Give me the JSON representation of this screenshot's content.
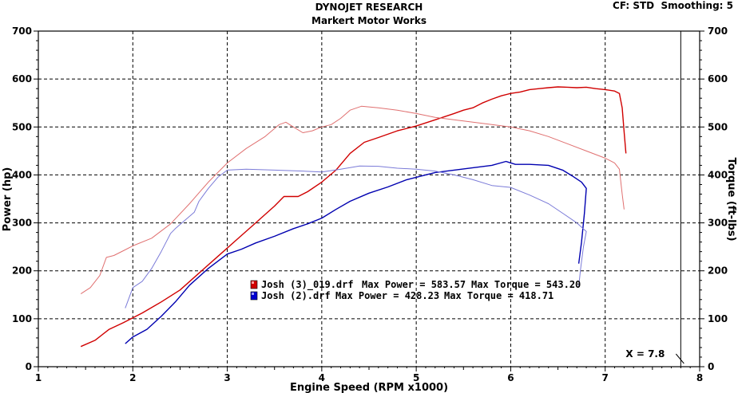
{
  "header": {
    "title": "DYNOJET RESEARCH",
    "subtitle": "Markert Motor Works",
    "cf_label": "CF: STD",
    "smoothing_label": "Smoothing: 5"
  },
  "legend": [
    {
      "file": "Josh (3)_019.drf",
      "power_text": "Max Power = 583.57",
      "torque_text": "Max Torque = 543.20",
      "color": "#d00000"
    },
    {
      "file": "Josh (2).drf",
      "power_text": "Max Power = 428.23",
      "torque_text": "Max Torque = 418.71",
      "color": "#0000b0"
    }
  ],
  "cursor": {
    "label": "X = 7.8",
    "x": 7.8
  },
  "chart_data": {
    "type": "line",
    "xlabel": "Engine Speed (RPM x1000)",
    "ylabel_left": "Power (hp)",
    "ylabel_right": "Torque (ft-lbs)",
    "xlim": [
      1,
      8
    ],
    "ylim": [
      0,
      700
    ],
    "x_ticks": [
      "1",
      "2",
      "3",
      "4",
      "5",
      "6",
      "7",
      "8"
    ],
    "y_ticks": [
      "0",
      "100",
      "200",
      "300",
      "400",
      "500",
      "600",
      "700"
    ],
    "grid": true,
    "series": [
      {
        "name": "Josh (3)_019.drf",
        "quantity": "power",
        "color": "#d00000",
        "points": [
          [
            1.45,
            42
          ],
          [
            1.6,
            55
          ],
          [
            1.75,
            78
          ],
          [
            1.9,
            92
          ],
          [
            2.1,
            112
          ],
          [
            2.3,
            135
          ],
          [
            2.5,
            160
          ],
          [
            2.7,
            195
          ],
          [
            2.9,
            230
          ],
          [
            3.1,
            265
          ],
          [
            3.3,
            300
          ],
          [
            3.5,
            335
          ],
          [
            3.6,
            355
          ],
          [
            3.75,
            355
          ],
          [
            3.85,
            365
          ],
          [
            4.0,
            385
          ],
          [
            4.15,
            410
          ],
          [
            4.3,
            445
          ],
          [
            4.45,
            468
          ],
          [
            4.6,
            478
          ],
          [
            4.8,
            492
          ],
          [
            5.0,
            502
          ],
          [
            5.2,
            515
          ],
          [
            5.4,
            528
          ],
          [
            5.5,
            535
          ],
          [
            5.6,
            540
          ],
          [
            5.7,
            550
          ],
          [
            5.8,
            558
          ],
          [
            5.9,
            565
          ],
          [
            6.0,
            570
          ],
          [
            6.1,
            573
          ],
          [
            6.2,
            578
          ],
          [
            6.3,
            580
          ],
          [
            6.4,
            582
          ],
          [
            6.5,
            583.6
          ],
          [
            6.6,
            583
          ],
          [
            6.7,
            582
          ],
          [
            6.8,
            583
          ],
          [
            6.9,
            580
          ],
          [
            7.0,
            578
          ],
          [
            7.1,
            575
          ],
          [
            7.15,
            570
          ],
          [
            7.18,
            540
          ],
          [
            7.2,
            490
          ],
          [
            7.22,
            445
          ]
        ]
      },
      {
        "name": "Josh (3)_019.drf",
        "quantity": "torque",
        "color": "#e07070",
        "points": [
          [
            1.45,
            152
          ],
          [
            1.55,
            165
          ],
          [
            1.65,
            190
          ],
          [
            1.72,
            228
          ],
          [
            1.8,
            232
          ],
          [
            1.9,
            242
          ],
          [
            2.0,
            252
          ],
          [
            2.2,
            268
          ],
          [
            2.4,
            298
          ],
          [
            2.6,
            340
          ],
          [
            2.8,
            385
          ],
          [
            3.0,
            425
          ],
          [
            3.2,
            455
          ],
          [
            3.4,
            480
          ],
          [
            3.55,
            505
          ],
          [
            3.62,
            510
          ],
          [
            3.7,
            500
          ],
          [
            3.8,
            488
          ],
          [
            3.9,
            492
          ],
          [
            4.0,
            500
          ],
          [
            4.1,
            505
          ],
          [
            4.2,
            518
          ],
          [
            4.3,
            535
          ],
          [
            4.42,
            543.2
          ],
          [
            4.6,
            540
          ],
          [
            4.8,
            535
          ],
          [
            5.0,
            528
          ],
          [
            5.2,
            520
          ],
          [
            5.4,
            515
          ],
          [
            5.6,
            510
          ],
          [
            5.8,
            505
          ],
          [
            6.0,
            500
          ],
          [
            6.2,
            492
          ],
          [
            6.4,
            480
          ],
          [
            6.6,
            465
          ],
          [
            6.8,
            450
          ],
          [
            7.0,
            435
          ],
          [
            7.1,
            425
          ],
          [
            7.15,
            412
          ],
          [
            7.18,
            360
          ],
          [
            7.2,
            328
          ]
        ]
      },
      {
        "name": "Josh (2).drf",
        "quantity": "power",
        "color": "#0000b0",
        "points": [
          [
            1.92,
            48
          ],
          [
            2.0,
            62
          ],
          [
            2.15,
            78
          ],
          [
            2.3,
            105
          ],
          [
            2.45,
            135
          ],
          [
            2.6,
            170
          ],
          [
            2.8,
            205
          ],
          [
            3.0,
            235
          ],
          [
            3.15,
            245
          ],
          [
            3.3,
            258
          ],
          [
            3.5,
            272
          ],
          [
            3.7,
            288
          ],
          [
            3.85,
            298
          ],
          [
            4.0,
            310
          ],
          [
            4.15,
            328
          ],
          [
            4.3,
            345
          ],
          [
            4.5,
            362
          ],
          [
            4.7,
            375
          ],
          [
            4.9,
            390
          ],
          [
            5.0,
            395
          ],
          [
            5.2,
            405
          ],
          [
            5.4,
            410
          ],
          [
            5.6,
            415
          ],
          [
            5.8,
            420
          ],
          [
            5.95,
            428.2
          ],
          [
            6.05,
            422
          ],
          [
            6.2,
            422
          ],
          [
            6.4,
            420
          ],
          [
            6.55,
            410
          ],
          [
            6.65,
            398
          ],
          [
            6.75,
            385
          ],
          [
            6.8,
            372
          ],
          [
            6.78,
            320
          ],
          [
            6.75,
            260
          ],
          [
            6.72,
            215
          ]
        ]
      },
      {
        "name": "Josh (2).drf",
        "quantity": "torque",
        "color": "#7b7bd8",
        "points": [
          [
            1.92,
            122
          ],
          [
            2.0,
            165
          ],
          [
            2.1,
            178
          ],
          [
            2.2,
            205
          ],
          [
            2.3,
            240
          ],
          [
            2.4,
            278
          ],
          [
            2.45,
            288
          ],
          [
            2.65,
            322
          ],
          [
            2.7,
            345
          ],
          [
            2.8,
            372
          ],
          [
            2.9,
            395
          ],
          [
            3.0,
            410
          ],
          [
            3.2,
            412
          ],
          [
            3.5,
            410
          ],
          [
            3.8,
            408
          ],
          [
            4.0,
            406
          ],
          [
            4.2,
            412
          ],
          [
            4.4,
            418.7
          ],
          [
            4.6,
            418
          ],
          [
            4.8,
            414
          ],
          [
            5.0,
            412
          ],
          [
            5.2,
            408
          ],
          [
            5.4,
            400
          ],
          [
            5.6,
            390
          ],
          [
            5.8,
            378
          ],
          [
            6.0,
            374
          ],
          [
            6.2,
            358
          ],
          [
            6.4,
            340
          ],
          [
            6.55,
            320
          ],
          [
            6.7,
            300
          ],
          [
            6.8,
            282
          ],
          [
            6.77,
            250
          ],
          [
            6.74,
            205
          ],
          [
            6.72,
            168
          ]
        ]
      }
    ]
  }
}
